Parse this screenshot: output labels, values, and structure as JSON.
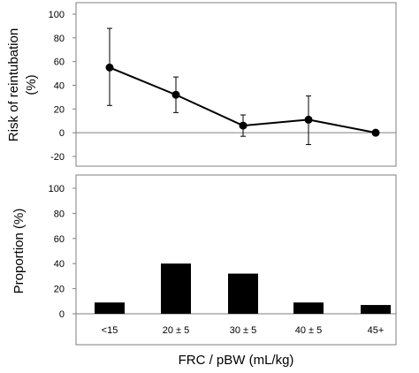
{
  "chart_data": [
    {
      "type": "line",
      "ylabel_line1": "Risk of reintubation",
      "ylabel_line2": "(%)",
      "ylim": [
        -20,
        100
      ],
      "yticks": [
        -20,
        0,
        20,
        40,
        60,
        80,
        100
      ],
      "categories": [
        "<15",
        "20 ± 5",
        "30 ± 5",
        "40 ± 5",
        "45+"
      ],
      "values": [
        55,
        32,
        6,
        11,
        0
      ],
      "error_upper": [
        88,
        47,
        15,
        31,
        0
      ],
      "error_lower": [
        23,
        17,
        -3,
        -10,
        0
      ],
      "grid": false,
      "colors": {
        "line": "#000000",
        "marker": "#000000"
      }
    },
    {
      "type": "bar",
      "ylabel": "Proportion (%)",
      "ylim": [
        0,
        100
      ],
      "yticks": [
        0,
        20,
        40,
        60,
        80,
        100
      ],
      "categories": [
        "<15",
        "20 ± 5",
        "30 ± 5",
        "40 ± 5",
        "45+"
      ],
      "values": [
        9,
        40,
        32,
        9,
        7
      ],
      "grid": false,
      "colors": {
        "bar": "#000000"
      }
    }
  ],
  "xlabel": "FRC / pBW  (mL/kg)"
}
